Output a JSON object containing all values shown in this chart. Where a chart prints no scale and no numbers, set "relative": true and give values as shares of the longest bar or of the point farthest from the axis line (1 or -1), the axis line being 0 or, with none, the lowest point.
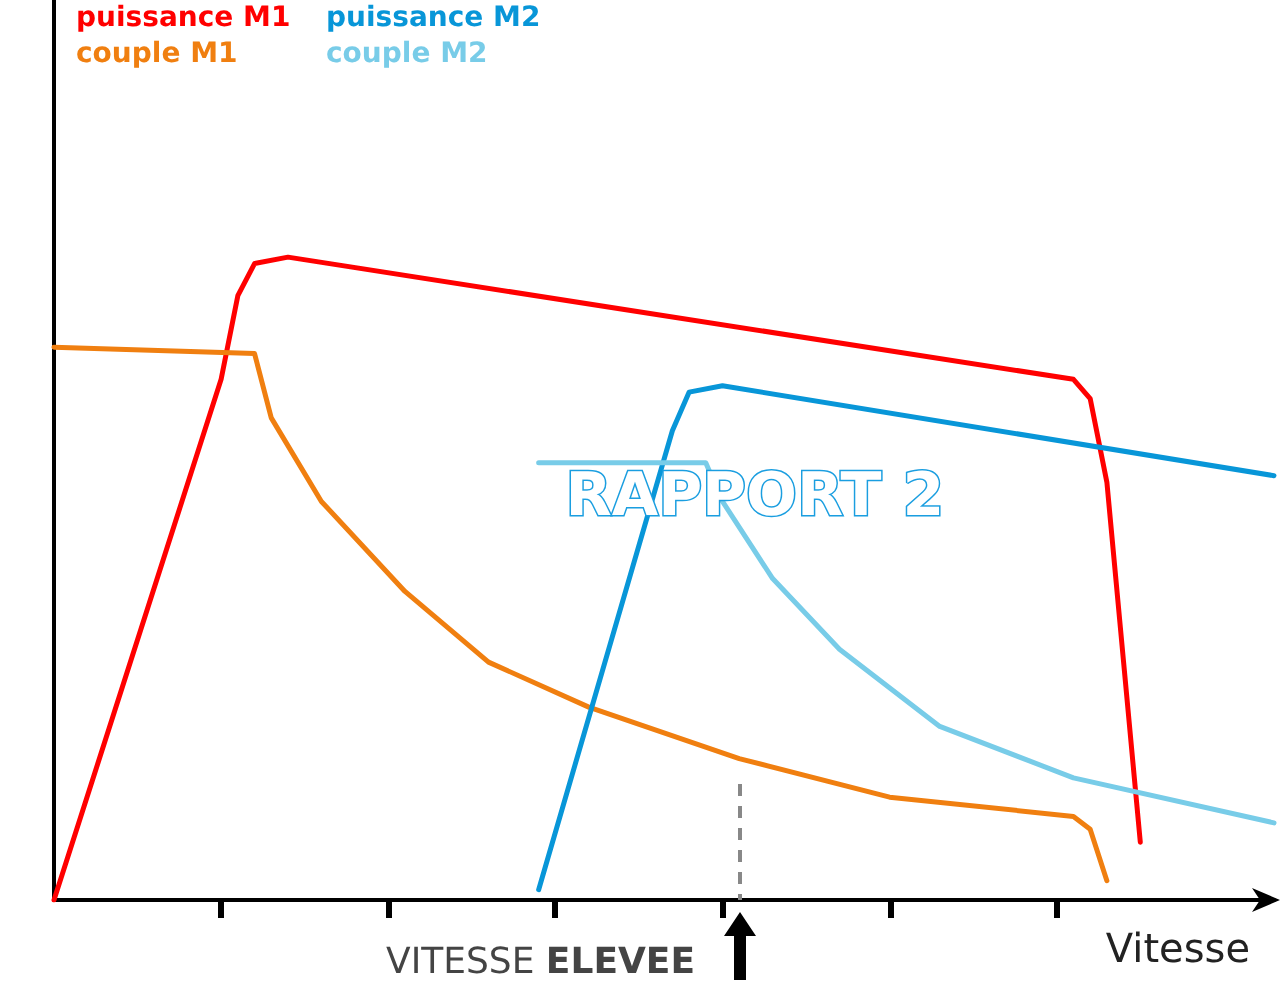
{
  "chart_data": {
    "type": "line",
    "relative": true,
    "xlabel": "Vitesse",
    "line_style": "solid",
    "grid": false,
    "categories": [
      null,
      null,
      null,
      null,
      null,
      null,
      null,
      null,
      null,
      null,
      null,
      null,
      null,
      null,
      null,
      null,
      null,
      null,
      null,
      null,
      null,
      null,
      null,
      null,
      null,
      null,
      null,
      null,
      null,
      null,
      null,
      null,
      null,
      null,
      null,
      null,
      null,
      null,
      null,
      null,
      null,
      null,
      null,
      null,
      null,
      null,
      null,
      null,
      null,
      null,
      null,
      null,
      null,
      null,
      null,
      null,
      null,
      null,
      null,
      null,
      null,
      null,
      null,
      null,
      null,
      null,
      null,
      null,
      null,
      null,
      null,
      null,
      null,
      null
    ],
    "annotations": [
      "VITESSE ELEVEE",
      "RAPPORT 2"
    ],
    "series": [
      {
        "name": "puissance M1",
        "color": "#ff0000",
        "values": [
          0,
          null,
          null,
          null,
          null,
          null,
          null,
          null,
          null,
          null,
          0.81,
          0.94,
          0.99,
          null,
          1.0,
          null,
          null,
          null,
          null,
          null,
          null,
          null,
          null,
          null,
          null,
          null,
          null,
          null,
          null,
          null,
          null,
          null,
          null,
          null,
          null,
          null,
          null,
          null,
          null,
          null,
          null,
          null,
          null,
          null,
          null,
          null,
          null,
          null,
          null,
          null,
          null,
          null,
          null,
          null,
          null,
          null,
          null,
          null,
          null,
          null,
          null,
          0.81,
          0.78,
          0.65,
          0.37,
          0.09,
          null,
          null,
          null,
          null,
          null,
          null,
          null,
          null
        ]
      },
      {
        "name": "couple M1",
        "color": "#f07f10",
        "values": [
          0.86,
          null,
          null,
          null,
          null,
          null,
          null,
          null,
          null,
          null,
          null,
          null,
          0.85,
          0.75,
          null,
          null,
          0.62,
          null,
          null,
          null,
          null,
          0.48,
          null,
          null,
          null,
          null,
          0.37,
          null,
          null,
          null,
          null,
          null,
          0.3,
          null,
          null,
          null,
          null,
          null,
          null,
          null,
          null,
          0.22,
          null,
          null,
          null,
          null,
          null,
          null,
          null,
          null,
          0.16,
          null,
          null,
          null,
          null,
          null,
          null,
          null,
          null,
          null,
          null,
          0.13,
          0.11,
          0.03,
          null,
          null,
          null,
          null,
          null,
          null,
          null,
          null,
          null,
          null
        ]
      },
      {
        "name": "puissance M2",
        "color": "#0896d8",
        "values": [
          null,
          null,
          null,
          null,
          null,
          null,
          null,
          null,
          null,
          null,
          null,
          null,
          null,
          null,
          null,
          null,
          null,
          null,
          null,
          null,
          null,
          null,
          null,
          null,
          null,
          null,
          null,
          null,
          null,
          0.016,
          null,
          null,
          null,
          null,
          null,
          null,
          null,
          0.73,
          0.79,
          null,
          0.8,
          null,
          null,
          null,
          null,
          null,
          null,
          null,
          null,
          null,
          null,
          null,
          null,
          null,
          null,
          null,
          null,
          null,
          null,
          null,
          null,
          null,
          null,
          null,
          null,
          null,
          null,
          null,
          null,
          null,
          null,
          null,
          null,
          0.66
        ]
      },
      {
        "name": "couple M2",
        "color": "#78cce8",
        "values": [
          null,
          null,
          null,
          null,
          null,
          null,
          null,
          null,
          null,
          null,
          null,
          null,
          null,
          null,
          null,
          null,
          null,
          null,
          null,
          null,
          null,
          null,
          null,
          null,
          null,
          null,
          null,
          null,
          null,
          0.68,
          null,
          null,
          null,
          null,
          null,
          null,
          null,
          null,
          null,
          0.68,
          0.62,
          null,
          null,
          0.5,
          null,
          null,
          null,
          0.39,
          null,
          null,
          null,
          null,
          null,
          0.27,
          null,
          null,
          null,
          null,
          null,
          null,
          null,
          0.19,
          null,
          null,
          null,
          null,
          null,
          null,
          null,
          null,
          null,
          null,
          null,
          0.12
        ]
      }
    ]
  }
}
